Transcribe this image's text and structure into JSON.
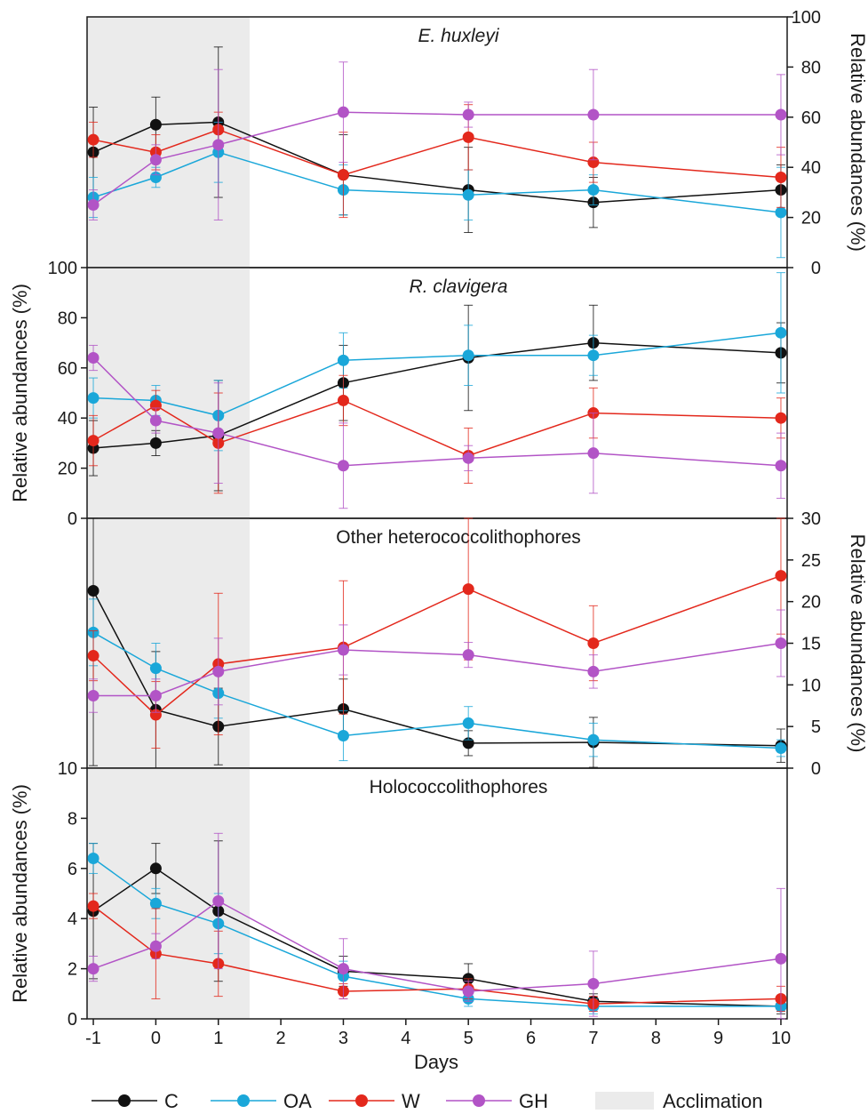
{
  "figure": {
    "xlabel": "Days",
    "ylabel": "Relative abundances (%)",
    "x_ticks": [
      -1,
      0,
      1,
      2,
      3,
      4,
      5,
      6,
      7,
      8,
      9,
      10
    ],
    "x_tick_labels": [
      "-1",
      "0",
      "1",
      "2",
      "3",
      "4",
      "5",
      "6",
      "7",
      "8",
      "9",
      "10"
    ],
    "acclimation_range": [
      -1,
      1.5
    ]
  },
  "legend": {
    "items": [
      {
        "key": "C",
        "label": "C"
      },
      {
        "key": "OA",
        "label": "OA"
      },
      {
        "key": "W",
        "label": "W"
      },
      {
        "key": "GH",
        "label": "GH"
      },
      {
        "key": "acclimation",
        "label": "Acclimation"
      }
    ]
  },
  "colors": {
    "C": "#111111",
    "OA": "#1aa7d9",
    "W": "#e3281c",
    "GH": "#b254c6",
    "acclimation": "#ebebeb",
    "axis": "#1a1a1a"
  },
  "chart_data": [
    {
      "type": "line",
      "title": "E. huxleyi",
      "title_italic": true,
      "y_axis_side": "right",
      "ylim": [
        0,
        100
      ],
      "y_ticks": [
        0,
        20,
        40,
        60,
        80,
        100
      ],
      "x": [
        -1,
        0,
        1,
        3,
        5,
        7,
        10
      ],
      "series": [
        {
          "name": "C",
          "values": [
            46,
            57,
            58,
            37,
            31,
            26,
            31
          ],
          "err": [
            18,
            11,
            30,
            16,
            17,
            10,
            10
          ]
        },
        {
          "name": "OA",
          "values": [
            28,
            36,
            46,
            31,
            29,
            31,
            22
          ],
          "err": [
            8,
            4,
            12,
            10,
            10,
            6,
            18
          ]
        },
        {
          "name": "W",
          "values": [
            51,
            46,
            55,
            37,
            52,
            42,
            36
          ],
          "err": [
            7,
            7,
            7,
            17,
            13,
            8,
            12
          ]
        },
        {
          "name": "GH",
          "values": [
            25,
            43,
            49,
            62,
            61,
            61,
            61
          ],
          "err": [
            6,
            6,
            30,
            20,
            5,
            18,
            16
          ]
        }
      ]
    },
    {
      "type": "line",
      "title": "R. clavigera",
      "title_italic": true,
      "y_axis_side": "left",
      "ylim": [
        0,
        100
      ],
      "y_ticks": [
        0,
        20,
        40,
        60,
        80,
        100
      ],
      "x": [
        -1,
        0,
        1,
        3,
        5,
        7,
        10
      ],
      "series": [
        {
          "name": "C",
          "values": [
            28,
            30,
            33,
            54,
            64,
            70,
            66
          ],
          "err": [
            11,
            5,
            22,
            15,
            21,
            15,
            12
          ]
        },
        {
          "name": "OA",
          "values": [
            48,
            47,
            41,
            63,
            65,
            65,
            74
          ],
          "err": [
            8,
            6,
            14,
            11,
            12,
            8,
            24
          ]
        },
        {
          "name": "W",
          "values": [
            31,
            45,
            30,
            47,
            25,
            42,
            40
          ],
          "err": [
            10,
            6,
            20,
            10,
            11,
            10,
            8
          ]
        },
        {
          "name": "GH",
          "values": [
            64,
            39,
            34,
            21,
            24,
            26,
            21
          ],
          "err": [
            5,
            5,
            20,
            17,
            5,
            16,
            13
          ]
        }
      ]
    },
    {
      "type": "line",
      "title": "Other heterococcolithophores",
      "title_italic": false,
      "y_axis_side": "right",
      "ylim": [
        0,
        30
      ],
      "y_ticks": [
        0,
        5,
        10,
        15,
        20,
        25,
        30
      ],
      "x": [
        -1,
        0,
        1,
        3,
        5,
        7,
        10
      ],
      "series": [
        {
          "name": "C",
          "values": [
            21.3,
            7.0,
            5.0,
            7.1,
            3.0,
            3.1,
            2.7
          ],
          "err": [
            21,
            7,
            4.6,
            3.6,
            1.5,
            3,
            2
          ]
        },
        {
          "name": "OA",
          "values": [
            16.3,
            12.0,
            9.0,
            3.9,
            5.4,
            3.4,
            2.4
          ],
          "err": [
            4,
            3,
            3,
            3,
            2,
            2,
            1
          ]
        },
        {
          "name": "W",
          "values": [
            13.5,
            6.4,
            12.5,
            14.5,
            21.5,
            15.0,
            23.1
          ],
          "err": [
            3,
            4,
            8.5,
            8,
            8.5,
            4.5,
            7
          ]
        },
        {
          "name": "GH",
          "values": [
            8.7,
            8.7,
            11.6,
            14.2,
            13.6,
            11.6,
            15.0
          ],
          "err": [
            2,
            2,
            4,
            3,
            1.5,
            2,
            4
          ]
        }
      ]
    },
    {
      "type": "line",
      "title": "Holococcolithophores",
      "title_italic": false,
      "y_axis_side": "left",
      "ylim": [
        0,
        10
      ],
      "y_ticks": [
        0,
        2,
        4,
        6,
        8,
        10
      ],
      "x": [
        -1,
        0,
        1,
        3,
        5,
        7,
        10
      ],
      "series": [
        {
          "name": "C",
          "values": [
            4.3,
            6.0,
            4.3,
            1.9,
            1.6,
            0.7,
            0.5
          ],
          "err": [
            2.7,
            1.0,
            2.8,
            0.6,
            0.6,
            0.3,
            0.3
          ]
        },
        {
          "name": "OA",
          "values": [
            6.4,
            4.6,
            3.8,
            1.7,
            0.8,
            0.5,
            0.5
          ],
          "err": [
            0.6,
            0.6,
            1.2,
            0.6,
            0.3,
            0.3,
            0.2
          ]
        },
        {
          "name": "W",
          "values": [
            4.5,
            2.6,
            2.2,
            1.1,
            1.2,
            0.6,
            0.8
          ],
          "err": [
            0.5,
            1.8,
            1.3,
            0.3,
            0.4,
            0.3,
            0.5
          ]
        },
        {
          "name": "GH",
          "values": [
            2.0,
            2.9,
            4.7,
            2.0,
            1.1,
            1.4,
            2.4
          ],
          "err": [
            0.5,
            0.5,
            2.7,
            1.2,
            0.4,
            1.3,
            2.8
          ]
        }
      ]
    }
  ]
}
